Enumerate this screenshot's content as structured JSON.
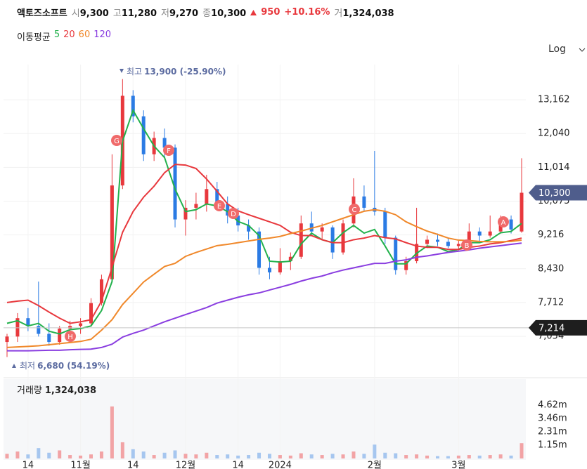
{
  "header": {
    "name": "액토즈소프트",
    "quotes": [
      {
        "label": "시",
        "value": "9,300"
      },
      {
        "label": "고",
        "value": "11,280"
      },
      {
        "label": "저",
        "value": "9,270"
      },
      {
        "label": "종",
        "value": "10,300"
      }
    ],
    "change": "950",
    "change_pct": "+10.16%",
    "volume_label": "거",
    "volume": "1,324,038"
  },
  "ma_title": "이동평균",
  "scale_button": "Log",
  "chart_data": {
    "type": "candlestick",
    "log": true,
    "grid": true,
    "categories": [
      null,
      null,
      "14",
      null,
      null,
      null,
      null,
      "11월",
      null,
      null,
      null,
      null,
      "14",
      null,
      null,
      null,
      null,
      "12월",
      null,
      null,
      null,
      null,
      "14",
      null,
      null,
      null,
      "2024",
      null,
      null,
      null,
      null,
      null,
      null,
      null,
      null,
      "2월",
      null,
      null,
      null,
      null,
      null,
      null,
      null,
      "3월",
      null,
      null,
      null,
      null,
      null,
      null
    ],
    "open": [
      6950,
      7050,
      7400,
      7250,
      7100,
      6950,
      7200,
      7250,
      7300,
      7700,
      8200,
      10500,
      13300,
      12600,
      11400,
      11900,
      11600,
      9600,
      9900,
      10000,
      10400,
      10000,
      9700,
      9450,
      9300,
      8450,
      8350,
      8600,
      8700,
      9500,
      9300,
      9400,
      8800,
      9500,
      10200,
      9900,
      9800,
      9150,
      8400,
      8600,
      9000,
      9100,
      9050,
      8950,
      9000,
      9300,
      9200,
      9300,
      9600,
      9300
    ],
    "high": [
      7100,
      7500,
      7600,
      8150,
      7300,
      7250,
      7350,
      7400,
      7800,
      8300,
      11400,
      13900,
      13500,
      12800,
      12100,
      12200,
      11700,
      10100,
      10300,
      10800,
      10600,
      10200,
      9900,
      9600,
      9400,
      8700,
      8900,
      8800,
      9700,
      9800,
      9500,
      9450,
      9600,
      10700,
      10500,
      11500,
      9900,
      9200,
      8700,
      9900,
      9200,
      9250,
      9150,
      9100,
      9500,
      9400,
      9700,
      9700,
      9700,
      11280
    ],
    "low": [
      6680,
      6950,
      7150,
      7050,
      6880,
      6900,
      7000,
      7100,
      7250,
      7650,
      8150,
      10400,
      12400,
      11200,
      11200,
      11300,
      9400,
      9200,
      9600,
      9800,
      9900,
      9500,
      9300,
      9100,
      8300,
      8200,
      8300,
      8400,
      8650,
      9200,
      9100,
      8650,
      8750,
      9400,
      9800,
      9700,
      9000,
      8300,
      8300,
      8550,
      8900,
      8950,
      8900,
      8850,
      8950,
      9050,
      9150,
      9250,
      9250,
      9270
    ],
    "close": [
      7050,
      7400,
      7250,
      7100,
      6950,
      7200,
      7250,
      7300,
      7700,
      8200,
      10500,
      13300,
      12600,
      11400,
      11900,
      11600,
      9600,
      9900,
      10000,
      10400,
      10000,
      9700,
      9450,
      9300,
      8450,
      8350,
      8600,
      8700,
      9500,
      9300,
      9400,
      8800,
      9500,
      10200,
      9900,
      9800,
      9150,
      8400,
      8600,
      9000,
      9100,
      9050,
      8950,
      9000,
      9300,
      9200,
      9300,
      9600,
      9350,
      10300
    ],
    "up_color": "#e8383d",
    "down_color": "#2b7be4",
    "series": [
      {
        "name": "5",
        "color": "#22b14c",
        "values": [
          7300,
          7350,
          7250,
          7300,
          7150,
          7100,
          7180,
          7200,
          7250,
          7550,
          8150,
          11800,
          12800,
          12200,
          11650,
          11300,
          10400,
          9800,
          9850,
          10000,
          9950,
          9800,
          9550,
          9450,
          9200,
          8600,
          8580,
          8600,
          9000,
          9260,
          9100,
          9030,
          9270,
          9450,
          9260,
          9350,
          8950,
          8540,
          8540,
          8780,
          8950,
          8920,
          8820,
          8870,
          9030,
          9030,
          9100,
          9270,
          9300,
          9500
        ]
      },
      {
        "name": "20",
        "color": "#e8383d",
        "values": [
          7712,
          7740,
          7760,
          7650,
          7520,
          7400,
          7300,
          7330,
          7370,
          7740,
          8460,
          9280,
          9800,
          10180,
          10480,
          10860,
          11100,
          11080,
          10980,
          10680,
          10340,
          10000,
          9820,
          9720,
          9630,
          9540,
          9450,
          9280,
          9200,
          9200,
          9100,
          9030,
          9030,
          9100,
          9140,
          9200,
          9150,
          9120,
          9030,
          8950,
          8920,
          8920,
          8870,
          8870,
          8920,
          8950,
          9000,
          9030,
          9080,
          9140
        ]
      },
      {
        "name": "60",
        "color": "#f0882a",
        "values": [
          6850,
          6860,
          6870,
          6880,
          6900,
          6920,
          6940,
          6960,
          7000,
          7170,
          7370,
          7670,
          7900,
          8140,
          8310,
          8480,
          8550,
          8710,
          8800,
          8880,
          8960,
          8990,
          9030,
          9070,
          9110,
          9140,
          9180,
          9250,
          9310,
          9380,
          9450,
          9540,
          9630,
          9720,
          9810,
          9850,
          9810,
          9720,
          9540,
          9420,
          9310,
          9230,
          9140,
          9090,
          9080,
          9060,
          9050,
          9050,
          9060,
          9090
        ]
      },
      {
        "name": "120",
        "color": "#8a3ee0",
        "values": [
          6790,
          6790,
          6790,
          6795,
          6800,
          6800,
          6810,
          6815,
          6820,
          6850,
          6910,
          7040,
          7110,
          7170,
          7250,
          7330,
          7400,
          7470,
          7540,
          7610,
          7700,
          7760,
          7820,
          7870,
          7910,
          7970,
          8030,
          8090,
          8160,
          8220,
          8270,
          8340,
          8400,
          8450,
          8500,
          8550,
          8550,
          8600,
          8630,
          8690,
          8720,
          8760,
          8800,
          8830,
          8860,
          8900,
          8930,
          8960,
          8990,
          9020
        ]
      }
    ],
    "ylim": [
      6360,
      14440
    ],
    "yticks": [
      {
        "value": 13162,
        "label": "13,162"
      },
      {
        "value": 12040,
        "label": "12,040"
      },
      {
        "value": 11014,
        "label": "11,014"
      },
      {
        "value": 10075,
        "label": "10,075"
      },
      {
        "value": 9216,
        "label": "9,216"
      },
      {
        "value": 8430,
        "label": "8,430"
      },
      {
        "value": 7712,
        "label": "7,712"
      },
      {
        "value": 7054,
        "label": "7,054"
      }
    ],
    "price_tags": [
      {
        "value": 10300,
        "label": "10,300",
        "color": "#4f5d8c"
      },
      {
        "value": 7214,
        "label": "7,214",
        "color": "#1e1e1e"
      }
    ],
    "high_note": {
      "prefix": "최고",
      "text": "13,900 (-25.90%)"
    },
    "low_note": {
      "prefix": "최저",
      "text": "6,680 (54.19%)"
    },
    "markers": [
      "A",
      "B",
      "C",
      "D",
      "E",
      "F",
      "G",
      "H"
    ],
    "volume_title": "거래량",
    "volume_value": "1,324,038",
    "volume": [
      400000,
      600000,
      350000,
      900000,
      500000,
      700000,
      300000,
      250000,
      350000,
      600000,
      4500000,
      1400000,
      800000,
      600000,
      300000,
      500000,
      700000,
      400000,
      350000,
      500000,
      300000,
      350000,
      250000,
      300000,
      500000,
      400000,
      300000,
      250000,
      450000,
      350000,
      300000,
      400000,
      350000,
      600000,
      400000,
      1200000,
      500000,
      450000,
      300000,
      350000,
      250000,
      200000,
      200000,
      250000,
      300000,
      250000,
      300000,
      350000,
      250000,
      1324038
    ],
    "vlim": [
      0,
      6740000
    ],
    "vticks": [
      {
        "value": 4620000,
        "label": "4.62m"
      },
      {
        "value": 3460000,
        "label": "3.46m"
      },
      {
        "value": 2310000,
        "label": "2.31m"
      },
      {
        "value": 1150000,
        "label": "1.15m"
      }
    ]
  }
}
